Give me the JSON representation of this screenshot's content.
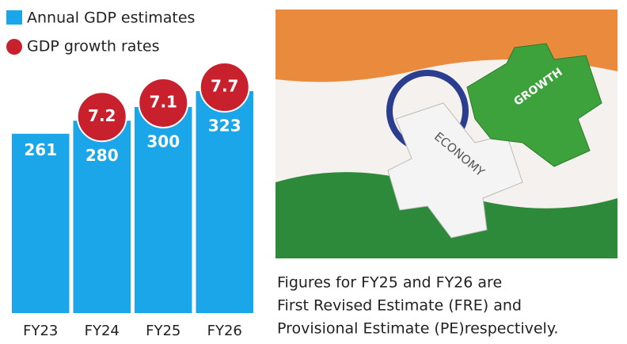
{
  "chart_data": {
    "type": "bar",
    "categories": [
      "FY23",
      "FY24",
      "FY25",
      "FY26"
    ],
    "series": [
      {
        "name": "Annual GDP estimates",
        "color": "#1ba6ea",
        "values": [
          261,
          280,
          300,
          323
        ]
      },
      {
        "name": "GDP growth rates",
        "color": "#c9202e",
        "values": [
          null,
          7.2,
          7.1,
          7.7
        ]
      }
    ]
  },
  "image": {
    "labels": [
      "GROWTH",
      "ECONOMY"
    ]
  },
  "caption": [
    "Figures for FY25 and FY26 are",
    "First Revised Estimate (FRE) and",
    "Provisional Estimate (PE)respectively."
  ]
}
